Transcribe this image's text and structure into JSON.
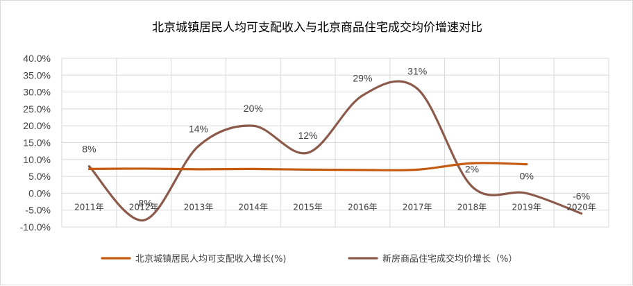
{
  "chart_data": {
    "type": "line",
    "title": "北京城镇居民人均可支配收入与北京商品住宅成交均价增速对比",
    "categories": [
      "2011年",
      "2012年",
      "2013年",
      "2014年",
      "2015年",
      "2016年",
      "2017年",
      "2018年",
      "2019年",
      "2020年"
    ],
    "yticks": [
      "40.0%",
      "35.0%",
      "30.0%",
      "25.0%",
      "20.0%",
      "15.0%",
      "10.0%",
      "5.0%",
      "0.0%",
      "-5.0%",
      "-10.0%"
    ],
    "ylim": [
      -10,
      40
    ],
    "grid": true,
    "smooth": true,
    "legend_position": "bottom",
    "series": [
      {
        "name": "北京城镇居民人均可支配收入增长(%)",
        "color": "#c55a11",
        "values": [
          7.2,
          7.3,
          7.1,
          7.2,
          7.0,
          6.9,
          7.0,
          8.9,
          8.6,
          null
        ],
        "labels": []
      },
      {
        "name": "新房商品住宅成交均价增长（%）",
        "color": "#8b5a4a",
        "values": [
          8,
          -8,
          14,
          20,
          12,
          29,
          31,
          2,
          0,
          -6
        ],
        "labels": [
          "8%",
          "-8%",
          "14%",
          "20%",
          "12%",
          "29%",
          "31%",
          "2%",
          "0%",
          "-6%"
        ]
      }
    ]
  }
}
